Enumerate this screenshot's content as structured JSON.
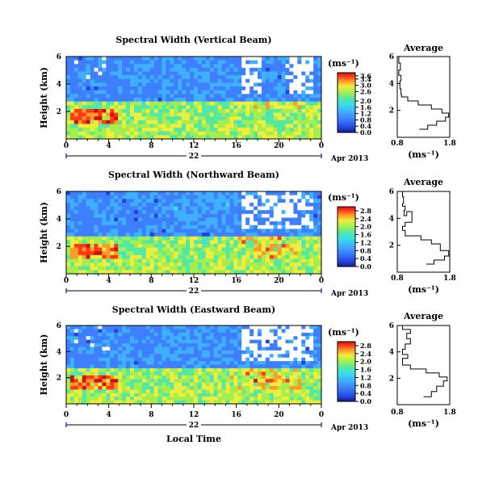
{
  "chart_data": [
    {
      "type": "heatmap",
      "title": "Spectral Width (Vertical Beam)",
      "ylabel": "Height (km)",
      "xlabel": "",
      "x_ticks": [
        "0",
        "4",
        "8",
        "12",
        "16",
        "20",
        "0"
      ],
      "x_range": [
        0,
        24
      ],
      "y_ticks": [
        "6",
        "4",
        "2"
      ],
      "y_range": [
        0,
        6
      ],
      "date_day": "22",
      "date_label": "Apr 2013",
      "colorbar": {
        "unit": "(ms⁻¹)",
        "ticks": [
          "3.6",
          "3.4",
          "3.0",
          "2.6",
          "2.0",
          "1.6",
          "1.2",
          "0.8",
          "0.4",
          "0.0"
        ],
        "range": [
          0,
          3.8
        ]
      },
      "grid": false
    },
    {
      "type": "heatmap",
      "title": "Spectral Width (Northward Beam)",
      "ylabel": "Height (km)",
      "xlabel": "",
      "x_ticks": [
        "0",
        "4",
        "8",
        "12",
        "16",
        "20",
        "0"
      ],
      "x_range": [
        0,
        24
      ],
      "y_ticks": [
        "6",
        "4",
        "2"
      ],
      "y_range": [
        0,
        6
      ],
      "date_day": "22",
      "date_label": "Apr 2013",
      "colorbar": {
        "unit": "(ms⁻¹)",
        "ticks": [
          "2.8",
          "2.4",
          "2.0",
          "1.6",
          "1.2",
          "0.8",
          "0.4",
          "0.0"
        ],
        "range": [
          0,
          3.0
        ]
      },
      "grid": false
    },
    {
      "type": "heatmap",
      "title": "Spectral Width (Eastward Beam)",
      "ylabel": "Height (km)",
      "xlabel": "Local Time",
      "x_ticks": [
        "0",
        "4",
        "8",
        "12",
        "16",
        "20",
        "0"
      ],
      "x_range": [
        0,
        24
      ],
      "y_ticks": [
        "6",
        "4",
        "2"
      ],
      "y_range": [
        0,
        6
      ],
      "date_day": "22",
      "date_label": "Apr 2013",
      "colorbar": {
        "unit": "(ms⁻¹)",
        "ticks": [
          "2.8",
          "2.4",
          "2.0",
          "1.6",
          "1.2",
          "0.8",
          "0.4",
          "0.0"
        ],
        "range": [
          0,
          3.0
        ]
      },
      "grid": false
    },
    {
      "type": "line",
      "title": "Average",
      "xlabel": "(ms⁻¹)",
      "x_ticks": [
        "0.8",
        "1.8"
      ],
      "xlim": [
        0.8,
        1.8
      ],
      "y_ticks": [
        "6",
        "4",
        "2"
      ],
      "ylim": [
        0,
        6
      ],
      "points": [
        [
          0.83,
          6.0
        ],
        [
          0.86,
          5.5
        ],
        [
          0.83,
          5.0
        ],
        [
          0.87,
          4.6
        ],
        [
          0.85,
          4.2
        ],
        [
          0.87,
          3.6
        ],
        [
          0.88,
          3.2
        ],
        [
          1.0,
          3.0
        ],
        [
          1.2,
          2.7
        ],
        [
          1.45,
          2.4
        ],
        [
          1.65,
          2.1
        ],
        [
          1.78,
          1.8
        ],
        [
          1.72,
          1.5
        ],
        [
          1.55,
          1.2
        ],
        [
          1.38,
          0.9
        ],
        [
          1.22,
          0.6
        ]
      ]
    },
    {
      "type": "line",
      "title": "Average",
      "xlabel": "(ms⁻¹)",
      "x_ticks": [
        "0.8",
        "1.8"
      ],
      "xlim": [
        0.8,
        1.8
      ],
      "y_ticks": [
        "6",
        "4",
        "2"
      ],
      "ylim": [
        0,
        6
      ],
      "points": [
        [
          0.9,
          6.0
        ],
        [
          0.92,
          5.6
        ],
        [
          0.9,
          5.1
        ],
        [
          0.95,
          4.9
        ],
        [
          0.93,
          4.6
        ],
        [
          0.98,
          4.2
        ],
        [
          1.08,
          4.5
        ],
        [
          0.95,
          3.7
        ],
        [
          0.9,
          3.4
        ],
        [
          0.95,
          3.1
        ],
        [
          1.25,
          2.7
        ],
        [
          1.45,
          2.4
        ],
        [
          1.62,
          2.1
        ],
        [
          1.78,
          1.6
        ],
        [
          1.7,
          1.2
        ],
        [
          1.5,
          0.9
        ],
        [
          1.35,
          0.6
        ]
      ]
    },
    {
      "type": "line",
      "title": "Average",
      "xlabel": "(ms⁻¹)",
      "x_ticks": [
        "0.8",
        "1.8"
      ],
      "xlim": [
        0.8,
        1.8
      ],
      "y_ticks": [
        "6",
        "4",
        "2"
      ],
      "ylim": [
        0,
        6
      ],
      "points": [
        [
          0.9,
          6.0
        ],
        [
          1.05,
          5.7
        ],
        [
          0.98,
          5.4
        ],
        [
          1.05,
          5.0
        ],
        [
          0.95,
          4.6
        ],
        [
          0.9,
          4.2
        ],
        [
          1.0,
          3.8
        ],
        [
          0.9,
          3.5
        ],
        [
          1.05,
          3.0
        ],
        [
          1.35,
          2.7
        ],
        [
          1.6,
          2.4
        ],
        [
          1.75,
          2.1
        ],
        [
          1.68,
          1.8
        ],
        [
          1.55,
          1.4
        ],
        [
          1.45,
          1.0
        ],
        [
          1.3,
          0.6
        ]
      ]
    }
  ],
  "palette": [
    "#1a1a80",
    "#2244dd",
    "#3d7fff",
    "#3fb0ff",
    "#38e0e8",
    "#55e8a0",
    "#a4ee50",
    "#eeee3c",
    "#ff9a28",
    "#ff3818",
    "#d01010"
  ]
}
